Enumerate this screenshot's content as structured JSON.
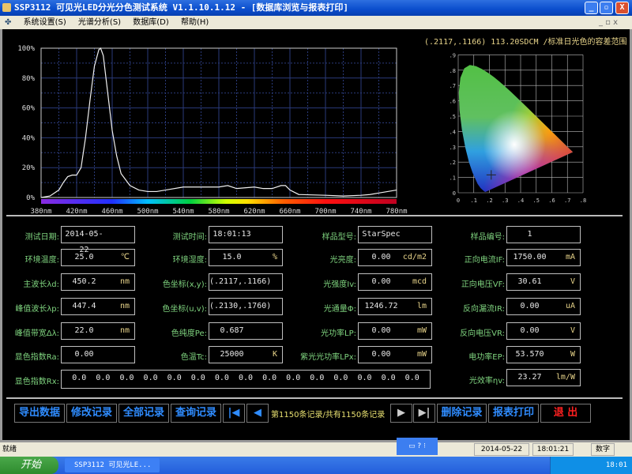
{
  "window": {
    "title": "SSP3112 可见光LED分光分色测试系统 V1.1.10.1.12 - [数据库浏览与报表打印]",
    "min": "_",
    "max": "▫",
    "close": "X"
  },
  "menu": [
    "系统设置(S)",
    "光谱分析(S)",
    "数据库(D)",
    "帮助(H)"
  ],
  "cie": {
    "caption": "(.2117,.1166) 113.20SDCM /标准日光色的容差范围",
    "point": {
      "x": 0.2117,
      "y": 0.1166
    },
    "xticks": [
      "0",
      ".1",
      ".2",
      ".3",
      ".4",
      ".5",
      ".6",
      ".7",
      ".8"
    ],
    "yticks": [
      "0",
      ".1",
      ".2",
      ".3",
      ".4",
      ".5",
      ".6",
      ".7",
      ".8",
      ".9"
    ]
  },
  "chart_data": {
    "type": "line",
    "xlabel": "",
    "ylabel": "",
    "xlim": [
      380,
      780
    ],
    "ylim": [
      0,
      100
    ],
    "xticks": [
      "380nm",
      "420nm",
      "460nm",
      "500nm",
      "540nm",
      "580nm",
      "620nm",
      "660nm",
      "700nm",
      "740nm",
      "780nm"
    ],
    "yticks": [
      "0%",
      "20%",
      "40%",
      "60%",
      "80%",
      "100%"
    ],
    "grid": true,
    "x": [
      380,
      390,
      400,
      405,
      410,
      415,
      420,
      425,
      430,
      435,
      440,
      445,
      447,
      450,
      455,
      460,
      465,
      470,
      480,
      490,
      500,
      510,
      520,
      540,
      560,
      580,
      590,
      600,
      620,
      630,
      640,
      650,
      655,
      660,
      670,
      700,
      720,
      740,
      750,
      760,
      770,
      780
    ],
    "y": [
      0,
      1,
      5,
      10,
      14,
      15,
      15,
      20,
      40,
      65,
      88,
      99,
      100,
      95,
      70,
      45,
      28,
      16,
      8,
      5,
      4,
      4,
      5,
      7,
      7,
      7,
      8,
      6,
      7,
      6,
      6,
      8,
      8,
      5,
      2,
      1.5,
      1,
      1.5,
      2,
      3,
      4,
      5
    ]
  },
  "fields": [
    {
      "label": "测试日期:",
      "value": "2014-05-22",
      "unit": ""
    },
    {
      "label": "测试时间:",
      "value": "18:01:13",
      "unit": ""
    },
    {
      "label": "样品型号:",
      "value": "StarSpec",
      "unit": ""
    },
    {
      "label": "样品编号:",
      "value": "1",
      "unit": ""
    },
    {
      "label": "环境温度:",
      "value": "25.0",
      "unit": "℃"
    },
    {
      "label": "环境湿度:",
      "value": "15.0",
      "unit": "%"
    },
    {
      "label": "光亮度:",
      "value": "0.00",
      "unit": "cd/m2"
    },
    {
      "label": "正向电流IF:",
      "value": "1750.00",
      "unit": "mA"
    },
    {
      "label": "主波长λd:",
      "value": "450.2",
      "unit": "nm"
    },
    {
      "label": "色坐标(x,y):",
      "value": "(.2117,.1166)",
      "unit": ""
    },
    {
      "label": "光强度Iv:",
      "value": "0.00",
      "unit": "mcd"
    },
    {
      "label": "正向电压VF:",
      "value": "30.61",
      "unit": "V"
    },
    {
      "label": "峰值波长λp:",
      "value": "447.4",
      "unit": "nm"
    },
    {
      "label": "色坐标(u,v):",
      "value": "(.2130,.1760)",
      "unit": ""
    },
    {
      "label": "光通量Φ:",
      "value": "1246.72",
      "unit": "lm"
    },
    {
      "label": "反向漏流IR:",
      "value": "0.00",
      "unit": "uA"
    },
    {
      "label": "峰值带宽Δλ:",
      "value": "22.0",
      "unit": "nm"
    },
    {
      "label": "色纯度Pe:",
      "value": "0.687",
      "unit": ""
    },
    {
      "label": "光功率LP:",
      "value": "0.00",
      "unit": "mW"
    },
    {
      "label": "反向电压VR:",
      "value": "0.00",
      "unit": "V"
    },
    {
      "label": "显色指数Ra:",
      "value": "0.00",
      "unit": ""
    },
    {
      "label": "色温Tc:",
      "value": "25000",
      "unit": "K"
    },
    {
      "label": "紫光光功率LPx:",
      "value": "0.00",
      "unit": "mW"
    },
    {
      "label": "电功率EP:",
      "value": "53.570",
      "unit": "W"
    }
  ],
  "rx": {
    "label": "显色指数Rx:",
    "values": "0.0  0.0  0.0  0.0  0.0  0.0  0.0  0.0  0.0  0.0  0.0  0.0  0.0  0.0  0.0"
  },
  "efficacy": {
    "label": "光效率ηv:",
    "value": "23.27",
    "unit": "lm/W"
  },
  "buttons": {
    "export": "导出数据",
    "edit": "修改记录",
    "all": "全部记录",
    "query": "查询记录",
    "first": "|◀",
    "prev": "◀",
    "record_info": "第1150条记录/共有1150条记录",
    "next": "▶",
    "last": "▶|",
    "delete": "删除记录",
    "print": "报表打印",
    "exit": "退 出"
  },
  "status": {
    "text": "就绪",
    "date": "2014-05-22",
    "time": "18:01:21",
    "mode": "数字"
  },
  "taskbar": {
    "start": "开始",
    "task": "SSP3112 可见光LE...",
    "clock": "18:01"
  }
}
